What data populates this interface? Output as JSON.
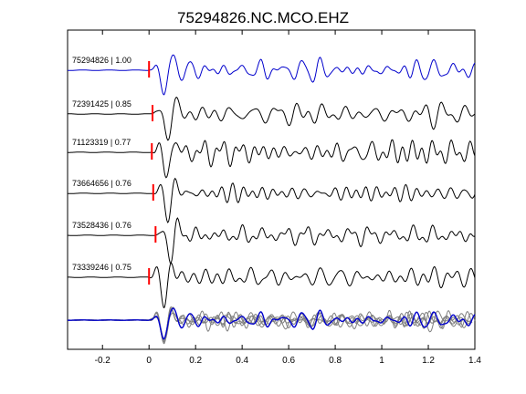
{
  "chart_data": {
    "type": "line",
    "title": "75294826.NC.MCO.EHZ",
    "xlabel": "",
    "ylabel": "",
    "xlim": [
      -0.35,
      1.4
    ],
    "x_ticks": [
      -0.2,
      0,
      0.2,
      0.4,
      0.6,
      0.8,
      1,
      1.2,
      1.4
    ],
    "x_tick_labels": [
      "-0.2",
      "0",
      "0.2",
      "0.4",
      "0.6",
      "0.8",
      "1",
      "1.2",
      "1.4"
    ],
    "grid": false,
    "colors": {
      "reference": "#0000cc",
      "trace": "#000000",
      "overlay": "#808080",
      "pick": "#ff0000",
      "axes": "#000000"
    },
    "traces": [
      {
        "label": "75294826 | 1.00",
        "event_id": "75294826",
        "correlation": 1.0,
        "pick_time": 0.0,
        "is_reference": true
      },
      {
        "label": "72391425 | 0.85",
        "event_id": "72391425",
        "correlation": 0.85,
        "pick_time": 0.015
      },
      {
        "label": "71123319 | 0.77",
        "event_id": "71123319",
        "correlation": 0.77,
        "pick_time": 0.012
      },
      {
        "label": "73664656 | 0.76",
        "event_id": "73664656",
        "correlation": 0.76,
        "pick_time": 0.018
      },
      {
        "label": "73528436 | 0.76",
        "event_id": "73528436",
        "correlation": 0.76,
        "pick_time": 0.028
      },
      {
        "label": "73339246 | 0.75",
        "event_id": "73339246",
        "correlation": 0.75,
        "pick_time": 0.0
      }
    ],
    "stacked_overlay": true
  }
}
